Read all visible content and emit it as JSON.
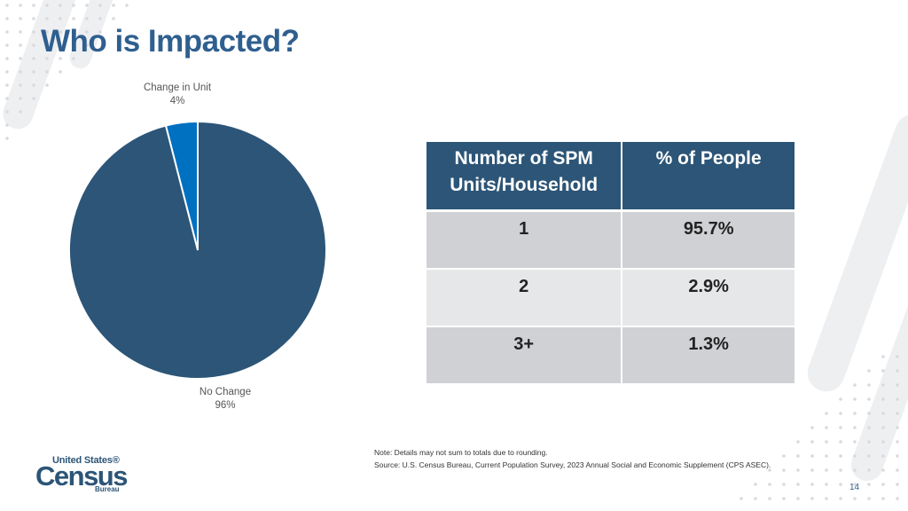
{
  "slide": {
    "title": "Who is Impacted?",
    "page_number": "14",
    "accent_color": "#2c5577",
    "highlight_color": "#0070c0"
  },
  "chart_data": {
    "type": "pie",
    "slices": [
      {
        "label": "Change in Unit",
        "value": 4,
        "value_label": "4%",
        "color": "#0070c0"
      },
      {
        "label": "No Change",
        "value": 96,
        "value_label": "96%",
        "color": "#2c5577"
      }
    ]
  },
  "table": {
    "headers": [
      "Number of SPM Units/Household",
      "% of People"
    ],
    "rows": [
      [
        "1",
        "95.7%"
      ],
      [
        "2",
        "2.9%"
      ],
      [
        "3+",
        "1.3%"
      ]
    ]
  },
  "notes": {
    "note": "Note: Details may not sum to totals due to rounding.",
    "source": "Source: U.S. Census Bureau, Current Population Survey, 2023 Annual Social and Economic Supplement (CPS ASEC)."
  },
  "logo": {
    "line1": "United States®",
    "line2": "Census",
    "line3": "Bureau"
  }
}
